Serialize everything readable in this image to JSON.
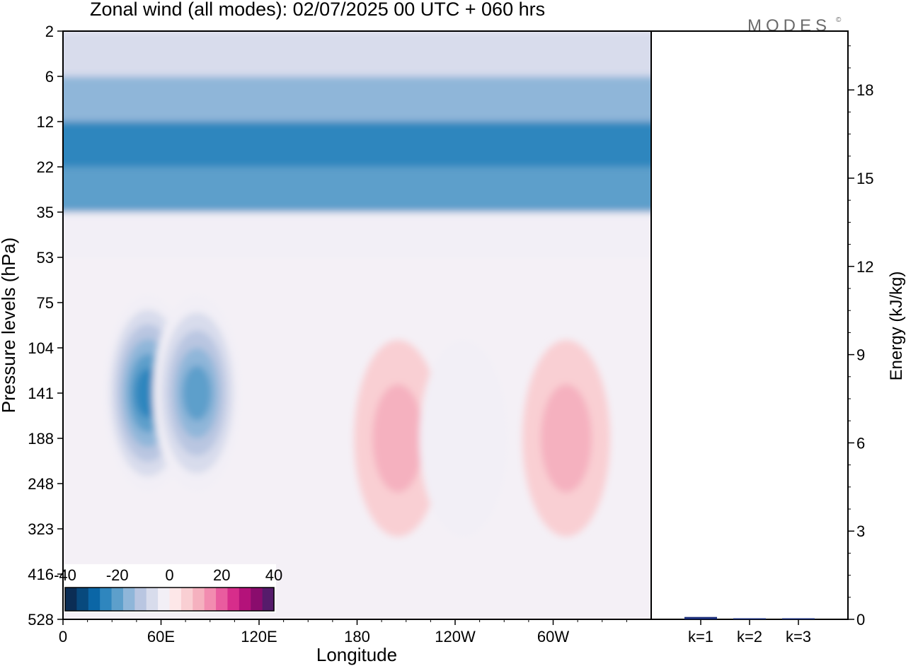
{
  "header": {
    "title": "Zonal wind (all modes):  02/07/2025  00 UTC  + 060 hrs",
    "logo_text": "MODES",
    "logo_mark": "©"
  },
  "colors": {
    "scale": [
      "#0b2d55",
      "#08497d",
      "#0b66a6",
      "#2f86be",
      "#5d9fcb",
      "#8fb6d9",
      "#b9c6e1",
      "#d8dcec",
      "#f2eff6",
      "#fde7e8",
      "#f9cfd3",
      "#f5b1bf",
      "#f28cb0",
      "#e95c9f",
      "#d72d8b",
      "#b4127a",
      "#8a0c6d",
      "#561b6b"
    ],
    "background_field": "#f4f0f6",
    "bar": "#1a2d78",
    "frame": "#000000"
  },
  "chart_data": [
    {
      "type": "heatmap",
      "title": "Zonal wind (all modes):  02/07/2025  00 UTC  + 060 hrs",
      "xlabel": "Longitude",
      "ylabel": "Pressure levels (hPa)",
      "x_ticks": [
        "0",
        "60E",
        "120E",
        "180",
        "120W",
        "60W"
      ],
      "x_range": [
        0,
        360
      ],
      "y_ticks": [
        "2",
        "6",
        "12",
        "22",
        "35",
        "53",
        "75",
        "104",
        "141",
        "188",
        "248",
        "323",
        "416",
        "528"
      ],
      "colorbar": {
        "labels": [
          "-40",
          "-20",
          "0",
          "20",
          "40"
        ],
        "range": [
          -40,
          40
        ],
        "interval": 5
      },
      "features": [
        {
          "lon_range": [
            0,
            360
          ],
          "level_range": [
            "2",
            "6"
          ],
          "value": -10
        },
        {
          "lon_range": [
            0,
            360
          ],
          "level_range": [
            "6",
            "12"
          ],
          "value": -20
        },
        {
          "lon_range": [
            0,
            360
          ],
          "level_range": [
            "12",
            "22"
          ],
          "value": -28
        },
        {
          "lon_range": [
            0,
            360
          ],
          "level_range": [
            "22",
            "35"
          ],
          "value": -22
        },
        {
          "lon_range": [
            0,
            360
          ],
          "level_range": [
            "35",
            "53"
          ],
          "value": -5
        },
        {
          "lon": 52,
          "level": "141",
          "value": -30
        },
        {
          "lon": 82,
          "level": "141",
          "value": -25
        },
        {
          "lon": 205,
          "level": "188",
          "value": 12
        },
        {
          "lon": 308,
          "level": "188",
          "value": 12
        },
        {
          "lon": 245,
          "level": "188",
          "value": -8
        }
      ]
    },
    {
      "type": "bar",
      "ylabel": "Energy (kJ/kg)",
      "categories": [
        "k=1",
        "k=2",
        "k=3"
      ],
      "values": [
        0.08,
        0.03,
        0.02
      ],
      "ylim": [
        0,
        20
      ],
      "y_ticks": [
        "0",
        "3",
        "6",
        "9",
        "12",
        "15",
        "18"
      ]
    }
  ]
}
